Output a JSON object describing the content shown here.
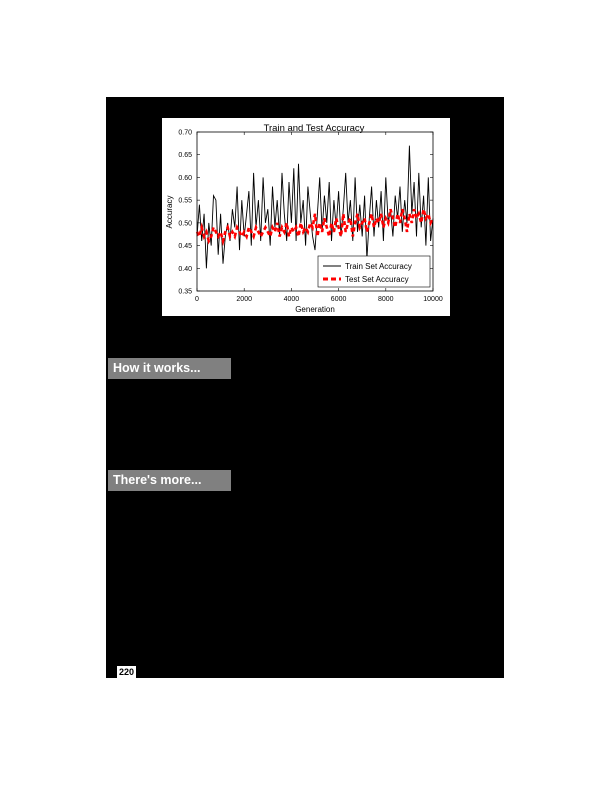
{
  "headings": {
    "how_it_works": "How it works...",
    "theres_more": "There's more..."
  },
  "page_number": "220",
  "colors": {
    "train": "#000000",
    "test": "#ff0000",
    "heading_bg": "#808080"
  },
  "chart_data": {
    "type": "line",
    "title": "Train and Test Accuracy",
    "xlabel": "Generation",
    "ylabel": "Accuracy",
    "xlim": [
      0,
      10000
    ],
    "ylim": [
      0.35,
      0.7
    ],
    "xticks": [
      0,
      2000,
      4000,
      6000,
      8000,
      10000
    ],
    "yticks": [
      0.35,
      0.4,
      0.45,
      0.5,
      0.55,
      0.6,
      0.65,
      0.7
    ],
    "ytick_labels": [
      "0.35",
      "0.40",
      "0.45",
      "0.50",
      "0.55",
      "0.60",
      "0.65",
      "0.70"
    ],
    "legend_position": "lower-right",
    "series": [
      {
        "name": "Train Set Accuracy",
        "style": "solid",
        "x": [
          0,
          100,
          200,
          300,
          400,
          500,
          600,
          700,
          800,
          900,
          1000,
          1100,
          1200,
          1300,
          1400,
          1500,
          1600,
          1700,
          1800,
          1900,
          2000,
          2100,
          2200,
          2300,
          2400,
          2500,
          2600,
          2700,
          2800,
          2900,
          3000,
          3100,
          3200,
          3300,
          3400,
          3500,
          3600,
          3700,
          3800,
          3900,
          4000,
          4100,
          4200,
          4300,
          4400,
          4500,
          4600,
          4700,
          4800,
          4900,
          5000,
          5100,
          5200,
          5300,
          5400,
          5500,
          5600,
          5700,
          5800,
          5900,
          6000,
          6100,
          6200,
          6300,
          6400,
          6500,
          6600,
          6700,
          6800,
          6900,
          7000,
          7100,
          7200,
          7300,
          7400,
          7500,
          7600,
          7700,
          7800,
          7900,
          8000,
          8100,
          8200,
          8300,
          8400,
          8500,
          8600,
          8700,
          8800,
          8900,
          9000,
          9100,
          9200,
          9300,
          9400,
          9500,
          9600,
          9700,
          9800,
          9900,
          10000
        ],
        "y": [
          0.47,
          0.54,
          0.46,
          0.52,
          0.4,
          0.5,
          0.45,
          0.56,
          0.55,
          0.43,
          0.52,
          0.41,
          0.47,
          0.5,
          0.46,
          0.53,
          0.49,
          0.58,
          0.44,
          0.55,
          0.47,
          0.52,
          0.57,
          0.45,
          0.61,
          0.49,
          0.55,
          0.46,
          0.6,
          0.5,
          0.53,
          0.45,
          0.58,
          0.49,
          0.55,
          0.47,
          0.61,
          0.52,
          0.46,
          0.59,
          0.5,
          0.62,
          0.46,
          0.63,
          0.5,
          0.55,
          0.45,
          0.58,
          0.52,
          0.47,
          0.44,
          0.52,
          0.6,
          0.48,
          0.56,
          0.5,
          0.59,
          0.46,
          0.55,
          0.49,
          0.57,
          0.47,
          0.53,
          0.61,
          0.5,
          0.55,
          0.46,
          0.6,
          0.48,
          0.54,
          0.47,
          0.56,
          0.42,
          0.51,
          0.58,
          0.47,
          0.55,
          0.49,
          0.57,
          0.46,
          0.6,
          0.5,
          0.53,
          0.47,
          0.56,
          0.51,
          0.58,
          0.48,
          0.55,
          0.5,
          0.67,
          0.52,
          0.59,
          0.47,
          0.61,
          0.49,
          0.56,
          0.45,
          0.6,
          0.46,
          0.51
        ]
      },
      {
        "name": "Test Set Accuracy",
        "style": "dashed",
        "x": [
          0,
          100,
          200,
          300,
          400,
          500,
          600,
          700,
          800,
          900,
          1000,
          1100,
          1200,
          1300,
          1400,
          1500,
          1600,
          1700,
          1800,
          1900,
          2000,
          2100,
          2200,
          2300,
          2400,
          2500,
          2600,
          2700,
          2800,
          2900,
          3000,
          3100,
          3200,
          3300,
          3400,
          3500,
          3600,
          3700,
          3800,
          3900,
          4000,
          4100,
          4200,
          4300,
          4400,
          4500,
          4600,
          4700,
          4800,
          4900,
          5000,
          5100,
          5200,
          5300,
          5400,
          5500,
          5600,
          5700,
          5800,
          5900,
          6000,
          6100,
          6200,
          6300,
          6400,
          6500,
          6600,
          6700,
          6800,
          6900,
          7000,
          7100,
          7200,
          7300,
          7400,
          7500,
          7600,
          7700,
          7800,
          7900,
          8000,
          8100,
          8200,
          8300,
          8400,
          8500,
          8600,
          8700,
          8800,
          8900,
          9000,
          9100,
          9200,
          9300,
          9400,
          9500,
          9600,
          9700,
          9800,
          9900,
          10000
        ],
        "y": [
          0.48,
          0.47,
          0.49,
          0.47,
          0.48,
          0.46,
          0.47,
          0.49,
          0.48,
          0.47,
          0.48,
          0.46,
          0.48,
          0.49,
          0.47,
          0.48,
          0.47,
          0.49,
          0.48,
          0.47,
          0.48,
          0.47,
          0.49,
          0.48,
          0.47,
          0.49,
          0.48,
          0.47,
          0.48,
          0.49,
          0.48,
          0.47,
          0.49,
          0.48,
          0.5,
          0.47,
          0.49,
          0.48,
          0.5,
          0.47,
          0.49,
          0.48,
          0.49,
          0.47,
          0.5,
          0.48,
          0.49,
          0.48,
          0.5,
          0.49,
          0.52,
          0.47,
          0.5,
          0.48,
          0.51,
          0.49,
          0.47,
          0.5,
          0.48,
          0.51,
          0.49,
          0.47,
          0.52,
          0.48,
          0.5,
          0.51,
          0.47,
          0.5,
          0.52,
          0.49,
          0.5,
          0.51,
          0.48,
          0.5,
          0.52,
          0.49,
          0.51,
          0.5,
          0.52,
          0.49,
          0.51,
          0.5,
          0.53,
          0.51,
          0.49,
          0.52,
          0.5,
          0.53,
          0.51,
          0.48,
          0.52,
          0.5,
          0.53,
          0.51,
          0.52,
          0.5,
          0.53,
          0.51,
          0.52,
          0.5,
          0.51
        ]
      }
    ]
  }
}
